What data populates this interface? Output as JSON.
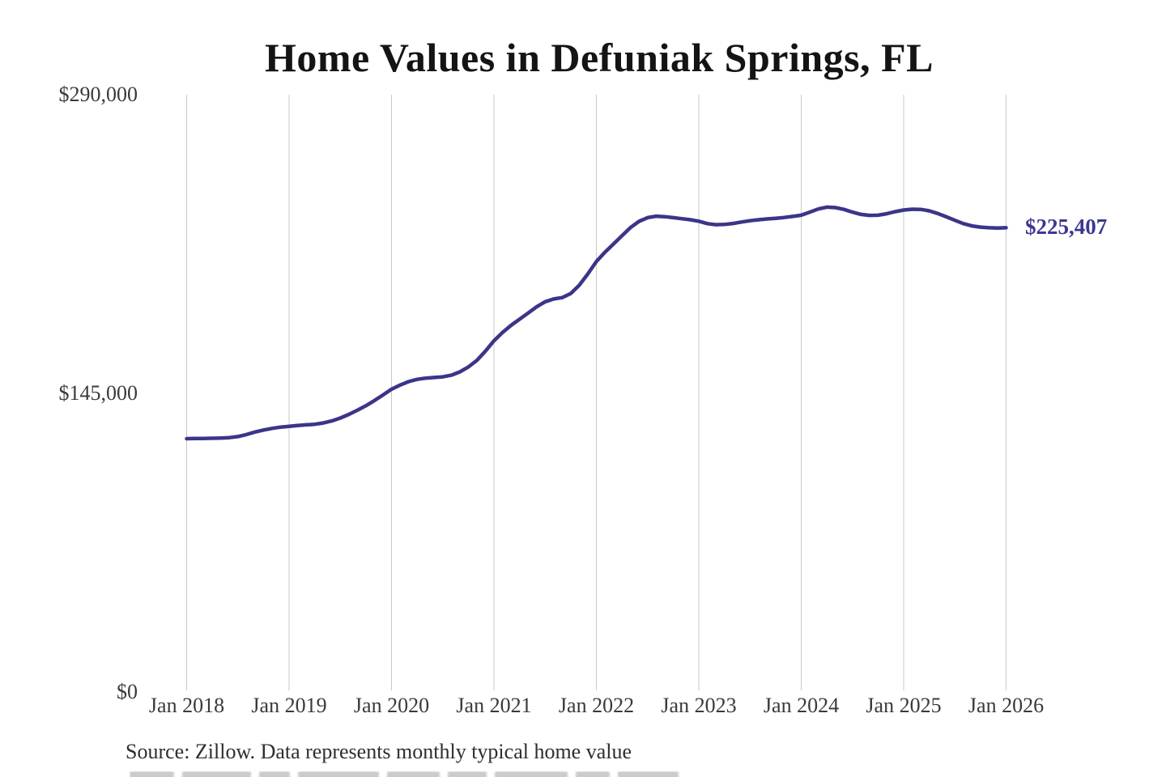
{
  "chart_data": {
    "type": "line",
    "title": "Home Values in Defuniak Springs, FL",
    "x_tick_labels": [
      "Jan 2018",
      "Jan 2019",
      "Jan 2020",
      "Jan 2021",
      "Jan 2022",
      "Jan 2023",
      "Jan 2024",
      "Jan 2025",
      "Jan 2026"
    ],
    "y_tick_labels": [
      "$0",
      "$145,000",
      "$290,000"
    ],
    "y_tick_values": [
      0,
      145000,
      290000
    ],
    "ylim": [
      0,
      290000
    ],
    "grid": "vertical yearly gridlines only",
    "legend_position": "none",
    "line_color": "#3b3589",
    "end_label_color": "#3c3792",
    "gridline_color": "#c9c9c9",
    "end_label": "$225,407",
    "final_value": 225407,
    "series": [
      {
        "name": "Monthly typical home value",
        "start": "2018-01",
        "end": "2026-01",
        "interval": "monthly",
        "values": [
          123000,
          123100,
          123100,
          123200,
          123300,
          123500,
          124000,
          125000,
          126200,
          127200,
          128000,
          128600,
          129000,
          129400,
          129700,
          130000,
          130600,
          131600,
          133000,
          134800,
          136800,
          139000,
          141500,
          144200,
          147000,
          149000,
          150700,
          151800,
          152400,
          152700,
          153000,
          153800,
          155400,
          157800,
          161000,
          165500,
          170500,
          174500,
          178000,
          181000,
          184000,
          187000,
          189500,
          190800,
          191500,
          193500,
          197500,
          203000,
          209000,
          213500,
          217500,
          221500,
          225500,
          228500,
          230300,
          231000,
          230800,
          230300,
          229800,
          229300,
          228600,
          227400,
          226900,
          227000,
          227500,
          228200,
          228800,
          229300,
          229700,
          230000,
          230400,
          230900,
          231500,
          233000,
          234500,
          235400,
          235200,
          234300,
          233000,
          231900,
          231400,
          231500,
          232200,
          233200,
          234000,
          234400,
          234300,
          233600,
          232300,
          230700,
          229000,
          227400,
          226300,
          225700,
          225400,
          225300,
          225407
        ]
      }
    ],
    "source_note": "Source: Zillow. Data represents monthly typical home value"
  }
}
